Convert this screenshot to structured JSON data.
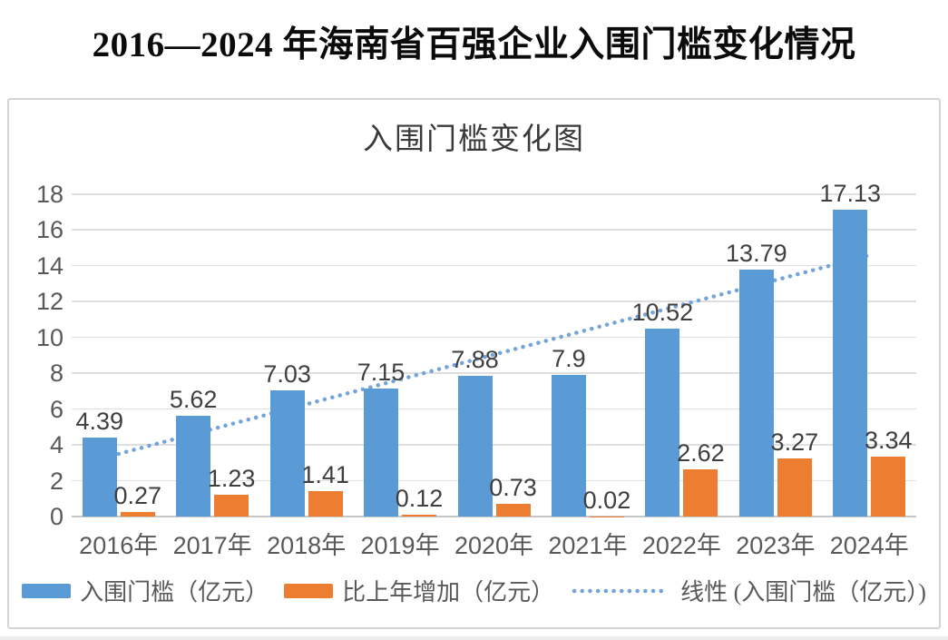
{
  "page": {
    "title": "2016—2024 年海南省百强企业入围门槛变化情况"
  },
  "chart_data": {
    "type": "bar",
    "title": "入围门槛变化图",
    "categories": [
      "2016年",
      "2017年",
      "2018年",
      "2019年",
      "2020年",
      "2021年",
      "2022年",
      "2023年",
      "2024年"
    ],
    "series": [
      {
        "name": "入围门槛（亿元）",
        "color": "#5B9BD5",
        "values": [
          4.39,
          5.62,
          7.03,
          7.15,
          7.88,
          7.9,
          10.52,
          13.79,
          17.13
        ]
      },
      {
        "name": "比上年增加（亿元）",
        "color": "#ED7D31",
        "values": [
          0.27,
          1.23,
          1.41,
          0.12,
          0.73,
          0.02,
          2.62,
          3.27,
          3.34
        ]
      }
    ],
    "trendline": {
      "name": "线性 (入围门槛（亿元）)",
      "color": "#74A5DA",
      "style": "dotted",
      "basis_series": "入围门槛（亿元）"
    },
    "y_axis": {
      "min": 0,
      "max": 18,
      "step": 2,
      "ticks": [
        0,
        2,
        4,
        6,
        8,
        10,
        12,
        14,
        16,
        18
      ]
    },
    "x_axis": {
      "label_suffix": "年"
    },
    "grid": true,
    "legend_position": "bottom",
    "data_labels": true,
    "colors": {
      "gridline": "#dfdfdf",
      "axis_text": "#595959",
      "label_text": "#3f3f3f"
    }
  }
}
